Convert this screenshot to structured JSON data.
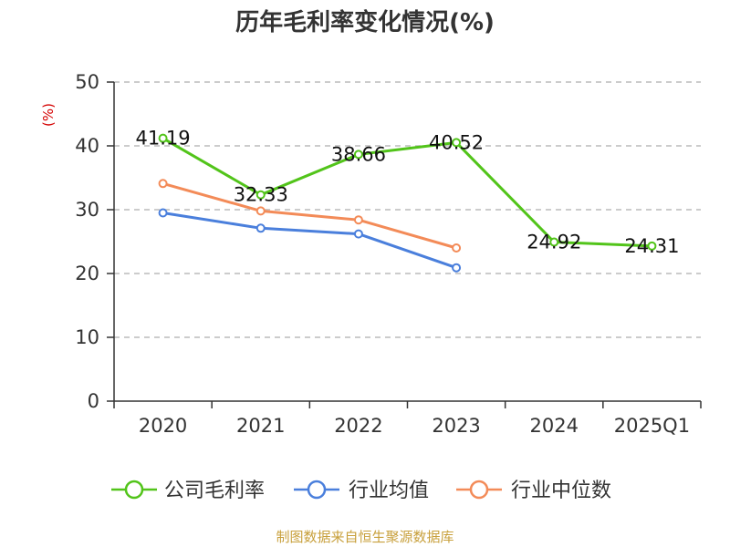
{
  "chart_data": {
    "type": "line",
    "title": "历年毛利率变化情况(%)",
    "ylabel": "(%)",
    "xlabel": "",
    "categories": [
      "2020",
      "2021",
      "2022",
      "2023",
      "2024",
      "2025Q1"
    ],
    "ylim": [
      0,
      50
    ],
    "yticks": [
      0,
      10,
      20,
      30,
      40,
      50
    ],
    "grid": true,
    "legend_position": "bottom",
    "series": [
      {
        "name": "公司毛利率",
        "color": "#52c41a",
        "values": [
          41.19,
          32.33,
          38.66,
          40.52,
          24.92,
          24.31
        ],
        "labels": [
          "41.19",
          "32.33",
          "38.66",
          "40.52",
          "24.92",
          "24.31"
        ]
      },
      {
        "name": "行业均值",
        "color": "#4a7fdc",
        "values": [
          29.5,
          27.1,
          26.2,
          20.9,
          null,
          null
        ]
      },
      {
        "name": "行业中位数",
        "color": "#f38b58",
        "values": [
          34.1,
          29.8,
          28.4,
          24.0,
          null,
          null
        ]
      }
    ]
  },
  "source": "制图数据来自恒生聚源数据库"
}
